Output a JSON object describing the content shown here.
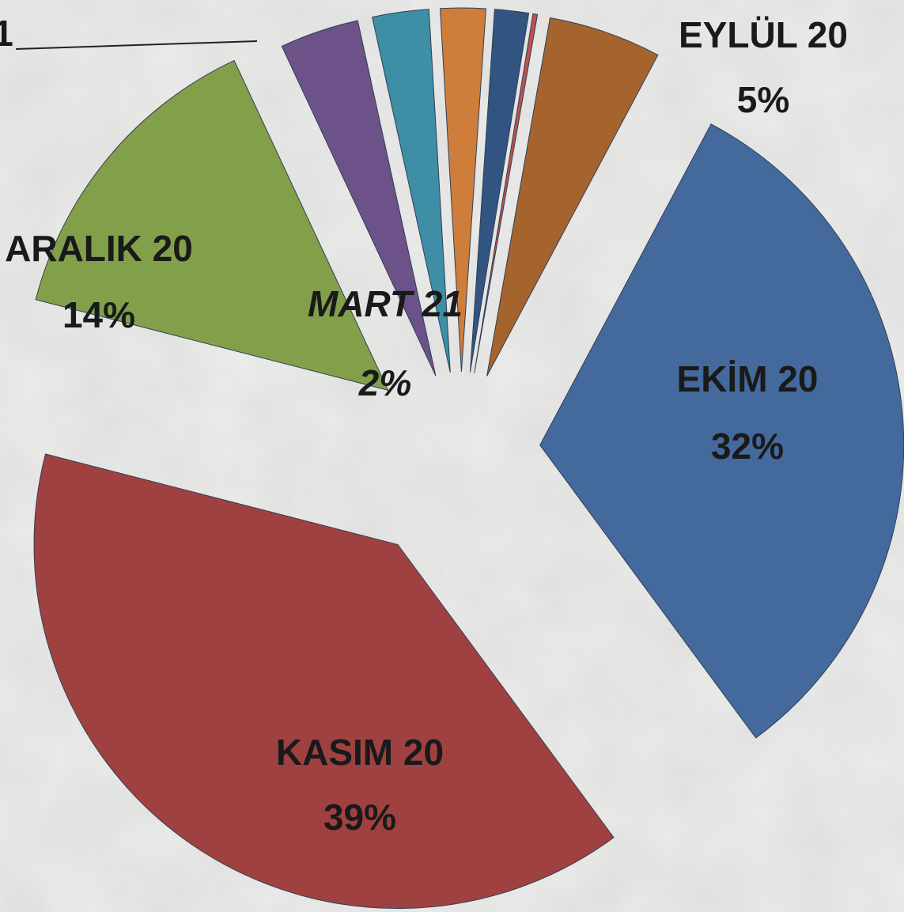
{
  "chart_data": {
    "type": "pie",
    "categories": [
      "EYLÜL 20",
      "EKİM 20",
      "KASIM 20",
      "ARALIK 20",
      null,
      null,
      "MART 21",
      null,
      null
    ],
    "values": [
      5,
      32,
      39,
      14,
      3.5,
      2.5,
      2,
      1.5,
      0.2
    ],
    "value_labels": [
      "5%",
      "32%",
      "39%",
      "14%",
      null,
      null,
      "2%",
      null,
      null
    ],
    "colors": [
      "#a5642e",
      "#44699d",
      "#a04141",
      "#82a04a",
      "#6c5289",
      "#3e8ea6",
      "#cf7d3b",
      "#315480",
      "#c0504d"
    ],
    "annotation": "1"
  }
}
